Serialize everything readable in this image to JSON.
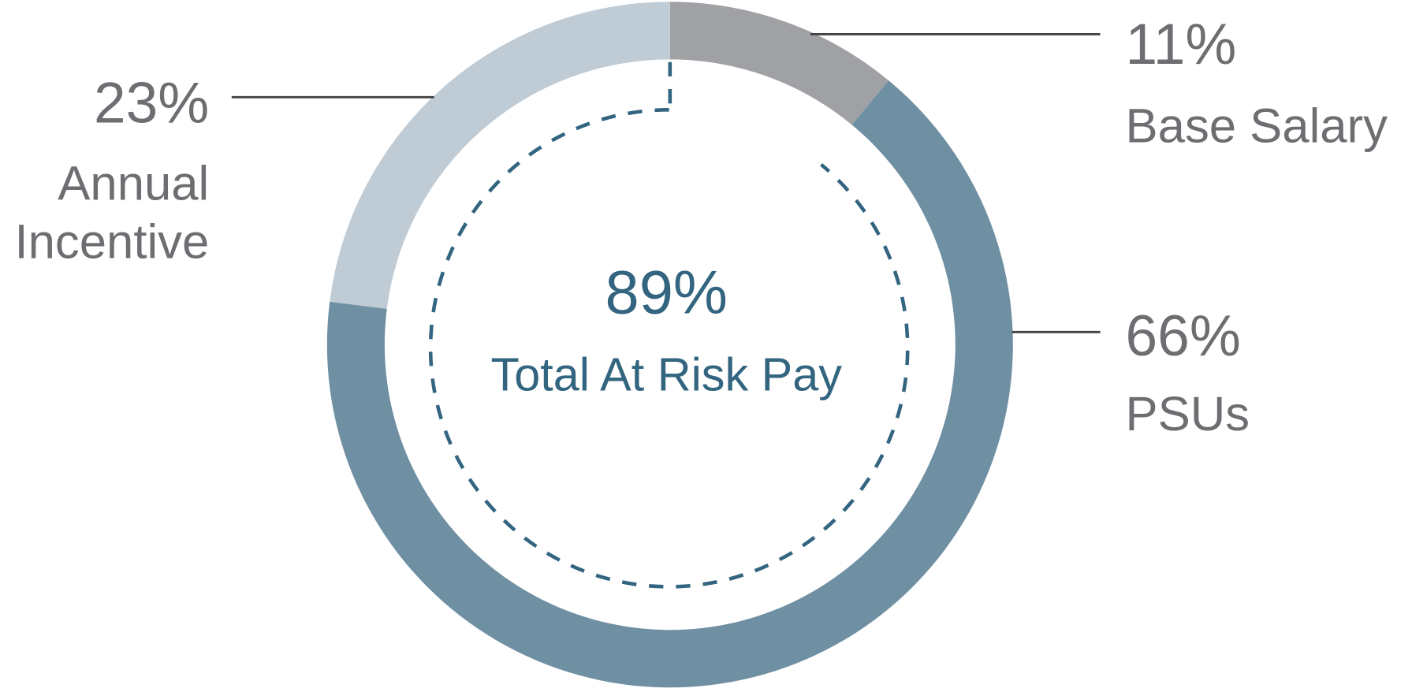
{
  "chart_data": {
    "type": "pie",
    "variant": "donut",
    "categories": [
      "Base Salary",
      "PSUs",
      "Annual Incentive"
    ],
    "values": [
      11,
      66,
      23
    ],
    "value_labels": [
      "11%",
      "66%",
      "23%"
    ],
    "colors": [
      "#a0a1a5",
      "#6f8fa3",
      "#c0ccd5"
    ],
    "start": "top",
    "direction": "clockwise",
    "center": {
      "value": "89%",
      "label": "Total At Risk Pay",
      "color": "#336580"
    },
    "at_risk_share": 89,
    "label_color": "#6d6e71",
    "labels": {
      "base_salary": {
        "pct": "11%",
        "name": "Base Salary"
      },
      "psus": {
        "pct": "66%",
        "name": "PSUs"
      },
      "annual_incentive": {
        "pct": "23%",
        "name_line1": "Annual",
        "name_line2": "Incentive"
      }
    }
  }
}
